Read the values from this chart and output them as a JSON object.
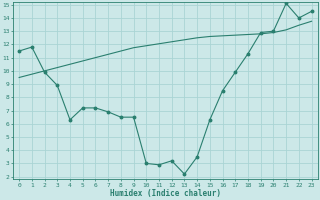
{
  "xlabel": "Humidex (Indice chaleur)",
  "x": [
    0,
    1,
    2,
    3,
    4,
    5,
    6,
    7,
    8,
    9,
    10,
    11,
    12,
    13,
    14,
    15,
    16,
    17,
    18,
    19,
    20,
    21,
    22,
    23
  ],
  "y_curve": [
    11.5,
    11.8,
    9.9,
    8.9,
    6.3,
    7.2,
    7.2,
    6.9,
    6.5,
    6.5,
    3.0,
    2.9,
    3.2,
    2.2,
    3.5,
    6.3,
    8.5,
    9.9,
    11.3,
    12.9,
    13.0,
    15.1,
    14.0,
    14.5
  ],
  "y_line": [
    9.5,
    9.75,
    10.0,
    10.25,
    10.5,
    10.75,
    11.0,
    11.25,
    11.5,
    11.75,
    11.9,
    12.05,
    12.2,
    12.35,
    12.5,
    12.6,
    12.65,
    12.7,
    12.75,
    12.8,
    12.9,
    13.1,
    13.45,
    13.75
  ],
  "color": "#2a7f6f",
  "bg_color": "#cce8e8",
  "grid_color": "#aad4d4",
  "ylim_min": 2,
  "ylim_max": 15,
  "xlim_min": 0,
  "xlim_max": 23,
  "yticks": [
    2,
    3,
    4,
    5,
    6,
    7,
    8,
    9,
    10,
    11,
    12,
    13,
    14,
    15
  ],
  "xticks": [
    0,
    1,
    2,
    3,
    4,
    5,
    6,
    7,
    8,
    9,
    10,
    11,
    12,
    13,
    14,
    15,
    16,
    17,
    18,
    19,
    20,
    21,
    22,
    23
  ],
  "tick_fontsize": 4.5,
  "xlabel_fontsize": 5.5
}
